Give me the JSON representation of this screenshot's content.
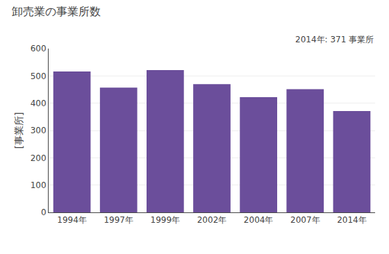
{
  "chart_data": {
    "type": "bar",
    "title": "卸売業の事業所数",
    "ylabel": "[事業所]",
    "annotation": "2014年: 371 事業所",
    "categories": [
      "1994年",
      "1997年",
      "1999年",
      "2002年",
      "2004年",
      "2007年",
      "2014年"
    ],
    "values": [
      516,
      457,
      521,
      470,
      422,
      451,
      371
    ],
    "color": "#6b4e9b",
    "ylim": [
      0,
      600
    ],
    "yticks": [
      0,
      100,
      200,
      300,
      400,
      500,
      600
    ],
    "grid": true
  }
}
